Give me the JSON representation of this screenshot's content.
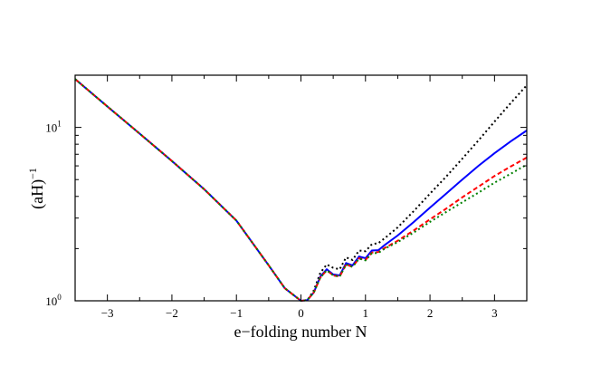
{
  "chart_data": {
    "type": "line",
    "xlabel": "e−folding number N",
    "ylabel": "(aH)",
    "ylabel_superscript": "−1",
    "xlim": [
      -3.5,
      3.5
    ],
    "ylim": [
      1.0,
      20.0
    ],
    "yscale": "log",
    "grid": false,
    "x_ticks": [
      -3,
      -2,
      -1,
      0,
      1,
      2,
      3
    ],
    "x_tick_labels": [
      "−3",
      "−2",
      "−1",
      "0",
      "1",
      "2",
      "3"
    ],
    "y_ticks": [
      {
        "value": 1,
        "base": "10",
        "exp": "0"
      },
      {
        "value": 10,
        "base": "10",
        "exp": "1"
      }
    ],
    "series": [
      {
        "color": "#000000",
        "style": "dotted",
        "x": [
          -3.5,
          -3.0,
          -2.5,
          -2.0,
          -1.5,
          -1.0,
          -0.5,
          -0.25,
          0.0,
          0.1,
          0.2,
          0.3,
          0.4,
          0.5,
          0.6,
          0.7,
          0.8,
          0.9,
          1.0,
          1.1,
          1.2,
          1.3,
          1.5,
          1.75,
          2.0,
          2.25,
          2.5,
          2.75,
          3.0,
          3.25,
          3.5
        ],
        "values": [
          19.0,
          13.2,
          9.2,
          6.4,
          4.4,
          2.9,
          1.6,
          1.18,
          1.0,
          1.01,
          1.15,
          1.45,
          1.62,
          1.55,
          1.52,
          1.78,
          1.72,
          1.95,
          1.93,
          2.12,
          2.15,
          2.3,
          2.65,
          3.3,
          4.15,
          5.2,
          6.6,
          8.4,
          10.8,
          13.8,
          17.5
        ]
      },
      {
        "color": "#0000ff",
        "style": "solid",
        "x": [
          -3.5,
          -3.0,
          -2.5,
          -2.0,
          -1.5,
          -1.0,
          -0.5,
          -0.25,
          0.0,
          0.1,
          0.2,
          0.3,
          0.4,
          0.5,
          0.6,
          0.7,
          0.8,
          0.9,
          1.0,
          1.1,
          1.2,
          1.3,
          1.5,
          1.75,
          2.0,
          2.25,
          2.5,
          2.75,
          3.0,
          3.25,
          3.5
        ],
        "values": [
          19.0,
          13.2,
          9.2,
          6.4,
          4.4,
          2.9,
          1.6,
          1.18,
          1.0,
          1.01,
          1.12,
          1.38,
          1.52,
          1.42,
          1.4,
          1.65,
          1.6,
          1.8,
          1.76,
          1.95,
          1.96,
          2.1,
          2.38,
          2.85,
          3.45,
          4.15,
          5.0,
          6.0,
          7.1,
          8.3,
          9.6
        ]
      },
      {
        "color": "#ff0000",
        "style": "dashed",
        "x": [
          -3.5,
          -3.0,
          -2.5,
          -2.0,
          -1.5,
          -1.0,
          -0.5,
          -0.25,
          0.0,
          0.1,
          0.2,
          0.3,
          0.4,
          0.5,
          0.6,
          0.7,
          0.8,
          0.9,
          1.0,
          1.1,
          1.2,
          1.3,
          1.5,
          1.75,
          2.0,
          2.25,
          2.5,
          2.75,
          3.0,
          3.25,
          3.5
        ],
        "values": [
          19.0,
          13.2,
          9.2,
          6.4,
          4.4,
          2.9,
          1.6,
          1.18,
          1.0,
          1.01,
          1.12,
          1.36,
          1.5,
          1.4,
          1.38,
          1.62,
          1.57,
          1.76,
          1.72,
          1.9,
          1.91,
          2.02,
          2.22,
          2.55,
          2.95,
          3.4,
          3.95,
          4.55,
          5.25,
          5.95,
          6.7
        ]
      },
      {
        "color": "#008000",
        "style": "dotted",
        "x": [
          -3.5,
          -3.0,
          -2.5,
          -2.0,
          -1.5,
          -1.0,
          -0.5,
          -0.25,
          0.0,
          0.1,
          0.2,
          0.3,
          0.4,
          0.5,
          0.6,
          0.7,
          0.8,
          0.9,
          1.0,
          1.1,
          1.2,
          1.3,
          1.5,
          1.75,
          2.0,
          2.25,
          2.5,
          2.75,
          3.0,
          3.25,
          3.5
        ],
        "values": [
          19.0,
          13.2,
          9.2,
          6.4,
          4.4,
          2.9,
          1.6,
          1.18,
          1.0,
          1.01,
          1.12,
          1.36,
          1.5,
          1.4,
          1.38,
          1.62,
          1.57,
          1.75,
          1.71,
          1.88,
          1.89,
          2.0,
          2.18,
          2.48,
          2.85,
          3.25,
          3.7,
          4.2,
          4.8,
          5.4,
          6.1
        ]
      }
    ]
  }
}
